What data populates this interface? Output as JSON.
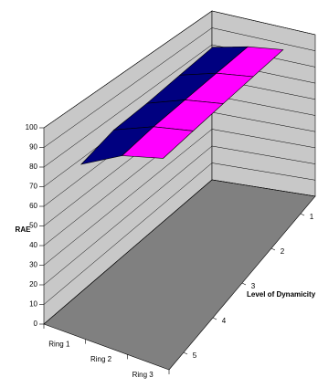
{
  "chart_data": {
    "type": "surface3d",
    "categories": [
      "Ring 1",
      "Ring 2",
      "Ring 3"
    ],
    "series": [
      {
        "name": "1",
        "values": [
          88,
          93,
          96
        ]
      },
      {
        "name": "2",
        "values": [
          86,
          92,
          95
        ]
      },
      {
        "name": "3",
        "values": [
          84,
          91,
          94
        ]
      },
      {
        "name": "4",
        "values": [
          83,
          90,
          93
        ]
      },
      {
        "name": "5",
        "values": [
          78,
          88,
          92
        ]
      }
    ],
    "y_label": "RAE",
    "depth_label": "Level of Dynamicity",
    "ylim": [
      0,
      100
    ],
    "yticks": [
      0,
      10,
      20,
      30,
      40,
      50,
      60,
      70,
      80,
      90,
      100
    ],
    "grid": true,
    "band_colors": [
      "#ccccff",
      "#ccccff",
      "#ccccff",
      "#ccccff",
      "#ccccff",
      "#ccccff",
      "#ccccff",
      "#ccccff",
      "#000080",
      "#ff00ff"
    ],
    "wall_color": "#c8c8c8",
    "floor_color": "#808080"
  }
}
